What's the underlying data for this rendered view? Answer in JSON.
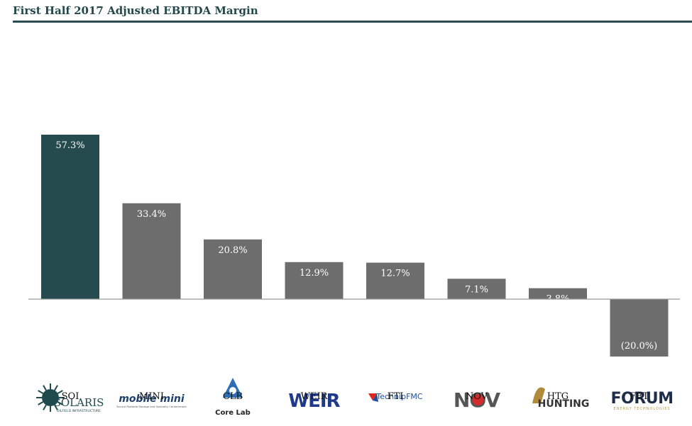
{
  "title": "First Half 2017 Adjusted EBITDA Margin",
  "colors": {
    "highlight": "#264b4f",
    "bar": "#6d6d6d",
    "axis": "#9a9a9a",
    "title_rule": "#2a4c50"
  },
  "chart_data": {
    "type": "bar",
    "title": "First Half 2017 Adjusted EBITDA Margin",
    "categories": [
      "SOI",
      "MINI",
      "CLB",
      "WEIR",
      "FTI",
      "NOV",
      "HTG",
      "FET"
    ],
    "values": [
      57.3,
      33.4,
      20.8,
      12.9,
      12.7,
      7.1,
      3.8,
      -20.0
    ],
    "data_labels": [
      "57.3%",
      "33.4%",
      "20.8%",
      "12.9%",
      "12.7%",
      "7.1%",
      "3.8%",
      "(20.0%)"
    ],
    "highlight_category": "SOI",
    "ylim": [
      -20,
      57.3
    ],
    "grid": false,
    "legend": "none"
  },
  "logos": [
    {
      "ticker": "SOI",
      "text": "SOLARIS",
      "sub": "OILFIELD INFRASTRUCTURE",
      "icon": "sun-burst-logo"
    },
    {
      "ticker": "MINI",
      "text": "mobile mini",
      "sub": "Secure Portable Storage and Specialty Containment",
      "icon": "mobile-mini-logo"
    },
    {
      "ticker": "CLB",
      "text": "Core Lab",
      "icon": "core-lab-triangle-logo"
    },
    {
      "ticker": "WEIR",
      "text": "WEIR",
      "icon": "weir-logo"
    },
    {
      "ticker": "FTI",
      "text": "TechnipFMC",
      "icon": "technipfmc-logo"
    },
    {
      "ticker": "NOV",
      "text": "NOV",
      "icon": "nov-logo"
    },
    {
      "ticker": "HTG",
      "text": "HUNTING",
      "icon": "hunting-logo"
    },
    {
      "ticker": "FET",
      "text": "FORUM",
      "sub": "ENERGY TECHNOLOGIES",
      "icon": "forum-logo"
    }
  ]
}
